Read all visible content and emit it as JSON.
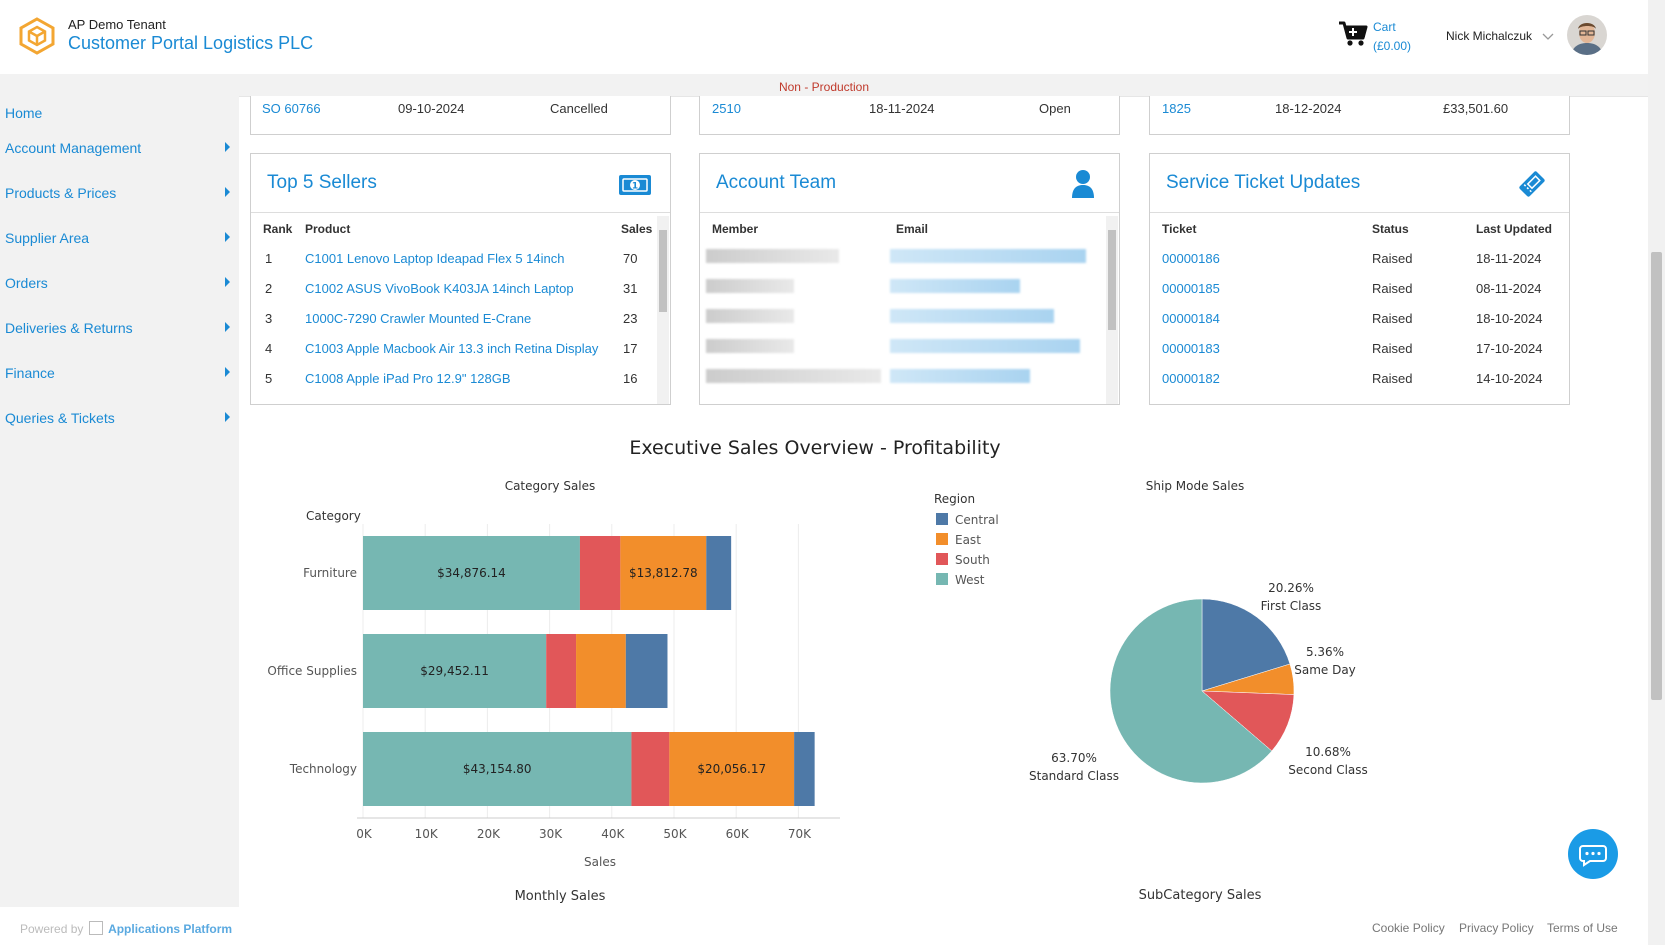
{
  "header": {
    "tenant": "AP Demo Tenant",
    "portal_title": "Customer Portal Logistics PLC",
    "cart_label": "Cart",
    "cart_total": "(£0.00)",
    "user_name": "Nick Michalczuk",
    "env_label": "Non - Production"
  },
  "sidebar": {
    "items": [
      {
        "label": "Home"
      },
      {
        "label": "Account Management"
      },
      {
        "label": "Products & Prices"
      },
      {
        "label": "Supplier Area"
      },
      {
        "label": "Orders"
      },
      {
        "label": "Deliveries & Returns"
      },
      {
        "label": "Finance"
      },
      {
        "label": "Queries & Tickets"
      }
    ]
  },
  "top_rows": {
    "orders": {
      "id": "SO 60766",
      "date": "09-10-2024",
      "status": "Cancelled"
    },
    "deliveries": {
      "id": "2510",
      "date": "18-11-2024",
      "status": "Open"
    },
    "invoices": {
      "id": "1825",
      "date": "18-12-2024",
      "amount": "£33,501.60"
    }
  },
  "sellers": {
    "title": "Top 5 Sellers",
    "headers": {
      "rank": "Rank",
      "product": "Product",
      "sales": "Sales"
    },
    "rows": [
      {
        "rank": "1",
        "product": "C1001 Lenovo Laptop Ideapad Flex 5 14inch",
        "sales": "70"
      },
      {
        "rank": "2",
        "product": "C1002 ASUS VivoBook K403JA 14inch Laptop",
        "sales": "31"
      },
      {
        "rank": "3",
        "product": "1000C-7290 Crawler Mounted E-Crane",
        "sales": "23"
      },
      {
        "rank": "4",
        "product": "C1003 Apple Macbook Air 13.3 inch Retina Display",
        "sales": "17"
      },
      {
        "rank": "5",
        "product": "C1008 Apple iPad Pro 12.9\" 128GB",
        "sales": "16"
      }
    ]
  },
  "account_team": {
    "title": "Account Team",
    "headers": {
      "member": "Member",
      "email": "Email"
    }
  },
  "tickets": {
    "title": "Service Ticket Updates",
    "headers": {
      "ticket": "Ticket",
      "status": "Status",
      "updated": "Last Updated"
    },
    "rows": [
      {
        "ticket": "00000186",
        "status": "Raised",
        "updated": "18-11-2024"
      },
      {
        "ticket": "00000185",
        "status": "Raised",
        "updated": "08-11-2024"
      },
      {
        "ticket": "00000184",
        "status": "Raised",
        "updated": "18-10-2024"
      },
      {
        "ticket": "00000183",
        "status": "Raised",
        "updated": "17-10-2024"
      },
      {
        "ticket": "00000182",
        "status": "Raised",
        "updated": "14-10-2024"
      }
    ]
  },
  "dashboard": {
    "title": "Executive Sales Overview - Profitability",
    "monthly_title": "Monthly Sales",
    "subcategory_title": "SubCategory Sales"
  },
  "colors": {
    "Central": "#4e79a7",
    "East": "#f28e2b",
    "South": "#e15759",
    "West": "#76b7b2",
    "accent": "#1a8ad4"
  },
  "chart_data": [
    {
      "type": "bar",
      "orientation": "horizontal",
      "stacked": true,
      "title": "Category Sales",
      "ylabel": "Category",
      "xlabel": "Sales",
      "categories": [
        "Furniture",
        "Office Supplies",
        "Technology"
      ],
      "series": [
        {
          "name": "West",
          "values": [
            34876.14,
            29452.11,
            43154.8
          ]
        },
        {
          "name": "South",
          "values": [
            6500,
            4800,
            6100
          ]
        },
        {
          "name": "East",
          "values": [
            13812.78,
            8000,
            20056.17
          ]
        },
        {
          "name": "Central",
          "values": [
            4000,
            6700,
            3300
          ]
        }
      ],
      "data_labels": [
        {
          "category": "Furniture",
          "series": "West",
          "text": "$34,876.14"
        },
        {
          "category": "Furniture",
          "series": "East",
          "text": "$13,812.78"
        },
        {
          "category": "Office Supplies",
          "series": "West",
          "text": "$29,452.11"
        },
        {
          "category": "Technology",
          "series": "West",
          "text": "$43,154.80"
        },
        {
          "category": "Technology",
          "series": "East",
          "text": "$20,056.17"
        }
      ],
      "xlim": [
        0,
        76000
      ],
      "xticks": [
        0,
        10000,
        20000,
        30000,
        40000,
        50000,
        60000,
        70000
      ],
      "xtick_labels": [
        "0K",
        "10K",
        "20K",
        "30K",
        "40K",
        "50K",
        "60K",
        "70K"
      ],
      "grid": true,
      "legend_title": "Region",
      "legend": [
        "Central",
        "East",
        "South",
        "West"
      ],
      "legend_placement": "right"
    },
    {
      "type": "pie",
      "title": "Ship Mode Sales",
      "slices": [
        {
          "label": "First Class",
          "value": 20.26,
          "text": "20.26%",
          "color": "#4e79a7"
        },
        {
          "label": "Same Day",
          "value": 5.36,
          "text": "5.36%",
          "color": "#f28e2b"
        },
        {
          "label": "Second Class",
          "value": 10.68,
          "text": "10.68%",
          "color": "#e15759"
        },
        {
          "label": "Standard Class",
          "value": 63.7,
          "text": "63.70%",
          "color": "#76b7b2"
        }
      ]
    }
  ],
  "footer": {
    "powered_prefix": "Powered by",
    "powered_brand": "Applications Platform",
    "links": [
      "Cookie Policy",
      "Privacy Policy",
      "Terms of Use"
    ]
  }
}
